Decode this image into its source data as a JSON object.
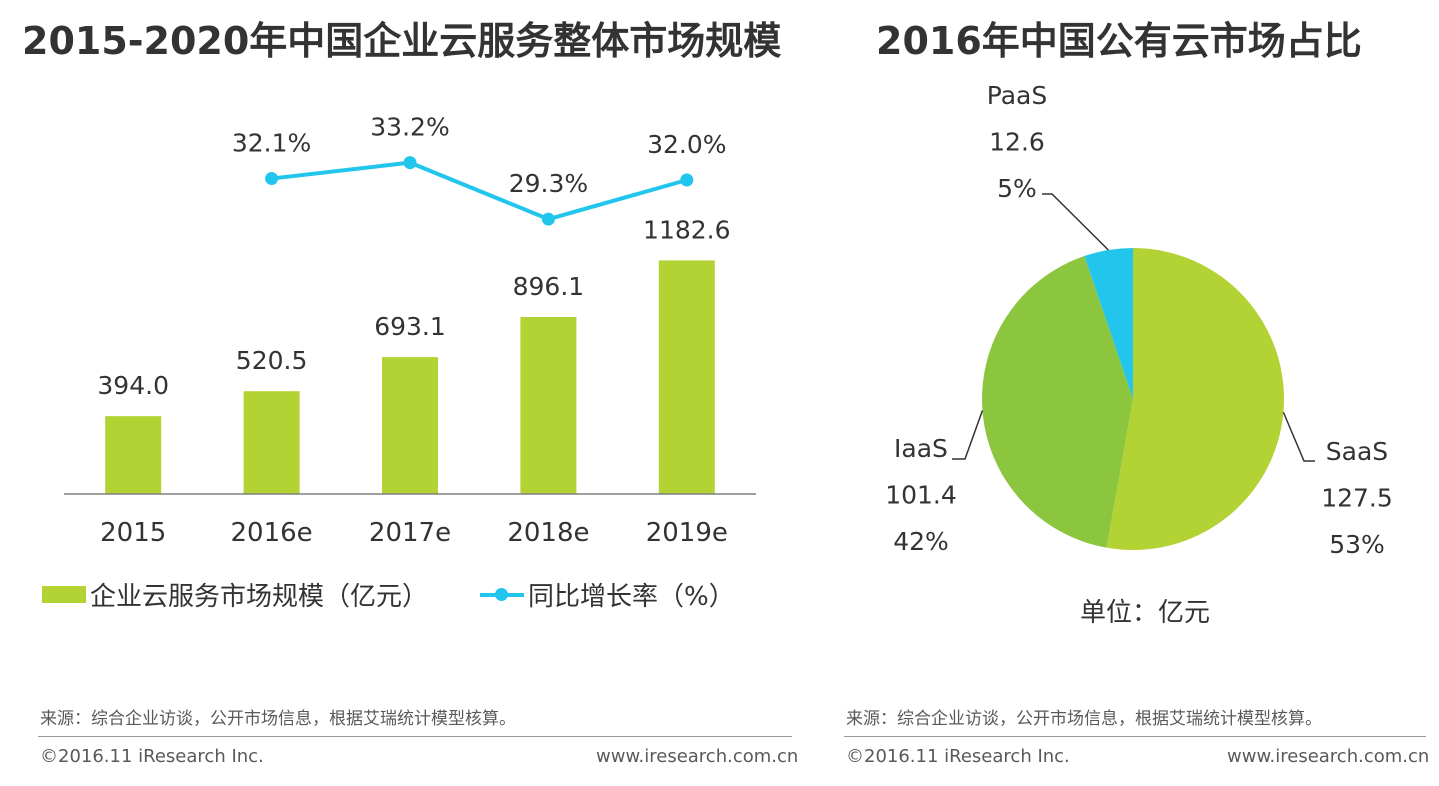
{
  "left": {
    "title": "2015-2020年中国企业云服务整体市场规模",
    "legend_bar": "企业云服务市场规模（亿元）",
    "legend_line": "同比增长率（%）",
    "source": "来源：综合企业访谈，公开市场信息，根据艾瑞统计模型核算。",
    "copyright": "©2016.11 iResearch Inc.",
    "website": "www.iresearch.com.cn"
  },
  "right": {
    "title": "2016年中国公有云市场占比",
    "unit": "单位：亿元",
    "source": "来源：综合企业访谈，公开市场信息，根据艾瑞统计模型核算。",
    "copyright": "©2016.11 iResearch Inc.",
    "website": "www.iresearch.com.cn"
  },
  "colors": {
    "bar": "#b3d234",
    "line": "#22c6ed",
    "saas": "#b3d234",
    "iaas": "#8cc63f",
    "paas": "#22c6ed",
    "text": "#333333",
    "axis": "#808080",
    "leader": "#333333"
  },
  "chart_data": [
    {
      "type": "bar",
      "title": "2015-2020年中国企业云服务整体市场规模",
      "categories": [
        "2015",
        "2016e",
        "2017e",
        "2018e",
        "2019e"
      ],
      "series": [
        {
          "name": "企业云服务市场规模（亿元）",
          "kind": "bar",
          "values": [
            394.0,
            520.5,
            693.1,
            896.1,
            1182.6
          ],
          "labels": [
            "394.0",
            "520.5",
            "693.1",
            "896.1",
            "1182.6"
          ]
        },
        {
          "name": "同比增长率（%）",
          "kind": "line",
          "values": [
            null,
            32.1,
            33.2,
            29.3,
            32.0
          ],
          "labels": [
            "",
            "32.1%",
            "33.2%",
            "29.3%",
            "32.0%"
          ]
        }
      ],
      "ylim": [
        0,
        1300
      ],
      "legend_position": "bottom",
      "grid": false
    },
    {
      "type": "pie",
      "title": "2016年中国公有云市场占比",
      "unit": "单位：亿元",
      "slices": [
        {
          "name": "SaaS",
          "value": 127.5,
          "value_label": "127.5",
          "percent": "53%"
        },
        {
          "name": "IaaS",
          "value": 101.4,
          "value_label": "101.4",
          "percent": "42%"
        },
        {
          "name": "PaaS",
          "value": 12.6,
          "value_label": "12.6",
          "percent": "5%"
        }
      ],
      "start": "12 o'clock",
      "direction": "clockwise"
    }
  ]
}
